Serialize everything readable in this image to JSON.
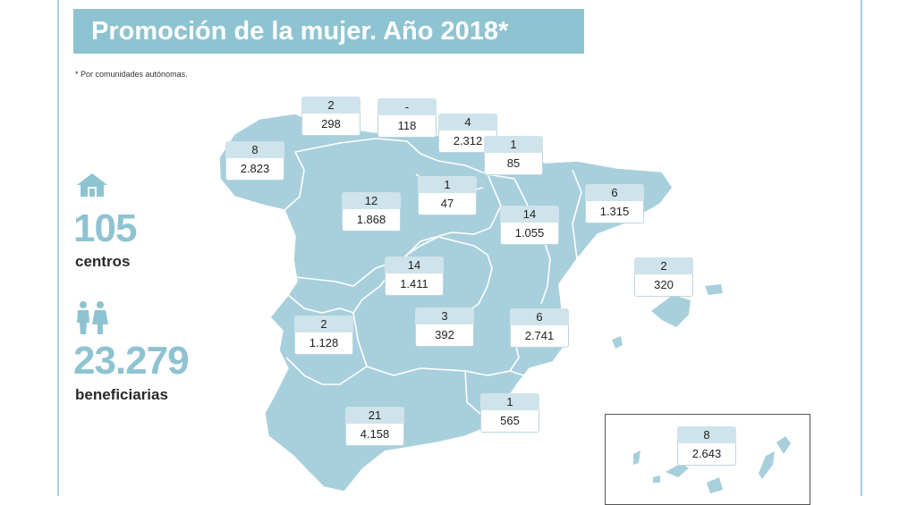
{
  "title": "Promoción de la mujer. Año 2018*",
  "footnote": "* Por comunidades autónomas.",
  "summary": {
    "centers_value": "105",
    "centers_label": "centros",
    "beneficiaries_value": "23.279",
    "beneficiaries_label": "beneficiarias",
    "icons": {
      "centers": "house-icon",
      "beneficiaries": "women-icon"
    }
  },
  "colors": {
    "land": "#a8cfdc",
    "title_bg": "#8ec3d1",
    "accent": "#8ec3d1",
    "box_top": "#cfe3ea"
  },
  "regions": [
    {
      "id": "galicia",
      "centros": "8",
      "beneficiarias": "2.823"
    },
    {
      "id": "asturias",
      "centros": "2",
      "beneficiarias": "298"
    },
    {
      "id": "cantabria",
      "centros": "-",
      "beneficiarias": "118"
    },
    {
      "id": "pais-vasco",
      "centros": "4",
      "beneficiarias": "2.312"
    },
    {
      "id": "navarra",
      "centros": "1",
      "beneficiarias": "85"
    },
    {
      "id": "la-rioja",
      "centros": "1",
      "beneficiarias": "47"
    },
    {
      "id": "castilla-y-leon",
      "centros": "12",
      "beneficiarias": "1.868"
    },
    {
      "id": "aragon",
      "centros": "14",
      "beneficiarias": "1.055"
    },
    {
      "id": "cataluna",
      "centros": "6",
      "beneficiarias": "1.315"
    },
    {
      "id": "baleares",
      "centros": "2",
      "beneficiarias": "320"
    },
    {
      "id": "madrid",
      "centros": "14",
      "beneficiarias": "1.411"
    },
    {
      "id": "castilla-la-mancha",
      "centros": "3",
      "beneficiarias": "392"
    },
    {
      "id": "extremadura",
      "centros": "2",
      "beneficiarias": "1.128"
    },
    {
      "id": "comunitat-valenciana",
      "centros": "6",
      "beneficiarias": "2.741"
    },
    {
      "id": "murcia",
      "centros": "1",
      "beneficiarias": "565"
    },
    {
      "id": "andalucia",
      "centros": "21",
      "beneficiarias": "4.158"
    },
    {
      "id": "canarias",
      "centros": "8",
      "beneficiarias": "2.643"
    }
  ]
}
